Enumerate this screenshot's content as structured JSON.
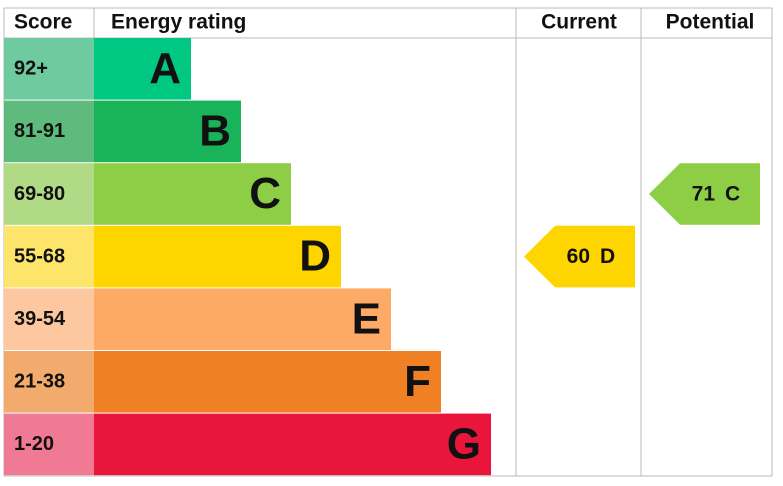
{
  "header": {
    "score": "Score",
    "rating": "Energy rating",
    "current": "Current",
    "potential": "Potential"
  },
  "bands": [
    {
      "range": "92+",
      "letter": "A",
      "color": "#00c781",
      "light": "#6fcb9f"
    },
    {
      "range": "81-91",
      "letter": "B",
      "color": "#19b459",
      "light": "#5fbb7d"
    },
    {
      "range": "69-80",
      "letter": "C",
      "color": "#8dce46",
      "light": "#b0da85"
    },
    {
      "range": "55-68",
      "letter": "D",
      "color": "#ffd500",
      "light": "#fde46a"
    },
    {
      "range": "39-54",
      "letter": "E",
      "color": "#fcaa65",
      "light": "#fdc89f"
    },
    {
      "range": "21-38",
      "letter": "F",
      "color": "#ef8023",
      "light": "#f3aa6d"
    },
    {
      "range": "1-20",
      "letter": "G",
      "color": "#e9153b",
      "light": "#f07a94"
    }
  ],
  "current": {
    "value": 60,
    "rating": "D"
  },
  "potential": {
    "value": 71,
    "rating": "C"
  }
}
